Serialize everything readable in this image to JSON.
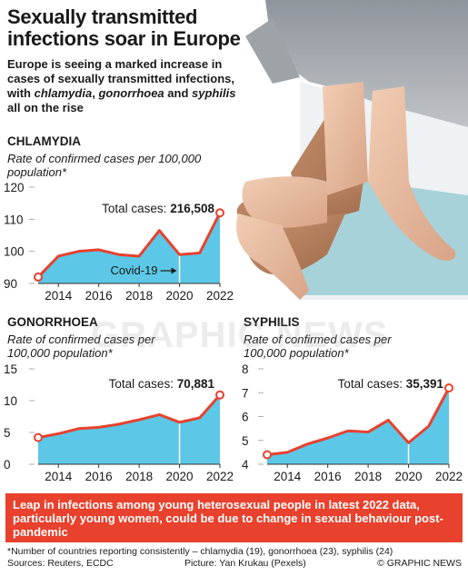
{
  "header": {
    "title": "Sexually transmitted infections soar in Europe",
    "subtitle_parts": [
      "Europe is seeing a marked increase in cases of sexually transmitted infections, with ",
      "chlamydia",
      ", ",
      "gonorrhoea",
      " and ",
      "syphilis",
      " all on the rise"
    ]
  },
  "colors": {
    "area": "#5cc7e6",
    "line": "#e8412d",
    "accent": "#e8412d",
    "axis": "#333333"
  },
  "chart_data": [
    {
      "type": "area",
      "title": "CHLAMYDIA",
      "ylabel": "Rate of confirmed cases per 100,000 population*",
      "total_label": "Total cases:",
      "total_value": "216,508",
      "annotation": "Covid-19",
      "annotation_x": 2020,
      "x": [
        2013,
        2014,
        2015,
        2016,
        2017,
        2018,
        2019,
        2020,
        2021,
        2022
      ],
      "y": [
        92,
        98.5,
        100,
        100.5,
        99,
        98.5,
        106.5,
        99,
        99.5,
        112
      ],
      "ylim": [
        90,
        120
      ],
      "yticks": [
        90,
        100,
        110,
        120
      ],
      "xticks": [
        2014,
        2016,
        2018,
        2020,
        2022
      ]
    },
    {
      "type": "area",
      "title": "GONORRHOEA",
      "ylabel": "Rate of confirmed cases per 100,000 population*",
      "total_label": "Total cases:",
      "total_value": "70,881",
      "x": [
        2013,
        2014,
        2015,
        2016,
        2017,
        2018,
        2019,
        2020,
        2021,
        2022
      ],
      "y": [
        4.2,
        4.8,
        5.6,
        5.8,
        6.3,
        7.0,
        7.8,
        6.6,
        7.3,
        10.9
      ],
      "ylim": [
        0,
        15
      ],
      "yticks": [
        0,
        5,
        10,
        15
      ],
      "xticks": [
        2014,
        2016,
        2018,
        2020,
        2022
      ]
    },
    {
      "type": "area",
      "title": "SYPHILIS",
      "ylabel": "Rate of confirmed cases per 100,000 population*",
      "total_label": "Total cases:",
      "total_value": "35,391",
      "x": [
        2013,
        2014,
        2015,
        2016,
        2017,
        2018,
        2019,
        2020,
        2021,
        2022
      ],
      "y": [
        4.4,
        4.5,
        4.85,
        5.1,
        5.4,
        5.35,
        5.85,
        4.9,
        5.6,
        7.2
      ],
      "ylim": [
        4,
        8
      ],
      "yticks": [
        4,
        5,
        6,
        7,
        8
      ],
      "xticks": [
        2014,
        2016,
        2018,
        2020,
        2022
      ]
    }
  ],
  "banner": "Leap in infections among young heterosexual people in latest 2022 data, particularly young women, could be due to change in sexual behaviour post-pandemic",
  "footer": {
    "note": "*Number of countries reporting consistently – chlamydia (19), gonorrhoea (23), syphilis (24)",
    "sources": "Sources: Reuters, ECDC",
    "picture": "Picture: Yan Krukau (Pexels)",
    "credit": "© GRAPHIC NEWS"
  },
  "watermark": "GRAPHIC NEWS"
}
